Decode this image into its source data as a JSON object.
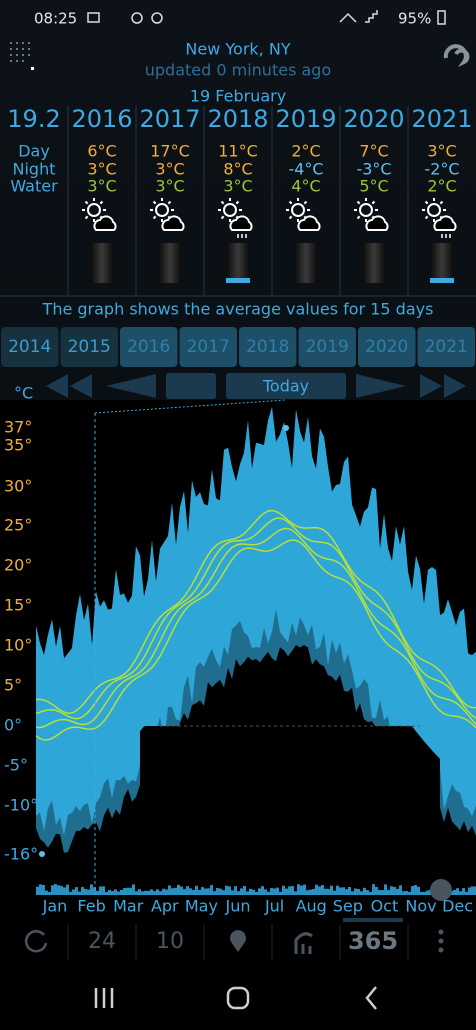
{
  "status": {
    "time": "08:25",
    "battery": "95%"
  },
  "header": {
    "location": "New York, NY",
    "updated": "updated 0 minutes ago",
    "date": "19 February"
  },
  "table": {
    "columns": [
      "19.2",
      "2016",
      "2017",
      "2018",
      "2019",
      "2020",
      "2021"
    ],
    "row_labels": [
      "Day",
      "Night",
      "Water"
    ],
    "rows": [
      [
        "6°C",
        "17°C",
        "11°C",
        "2°C",
        "7°C",
        "3°C"
      ],
      [
        "3°C",
        "3°C",
        "8°C",
        "-4°C",
        "-3°C",
        "-2°C"
      ],
      [
        "3°C",
        "3°C",
        "3°C",
        "4°C",
        "5°C",
        "2°C"
      ]
    ]
  },
  "note": "The graph shows the average values for 15 days",
  "year_tabs": [
    "2014",
    "2015",
    "2016",
    "2017",
    "2018",
    "2019",
    "2020",
    "2021"
  ],
  "today_button": "Today",
  "graph": {
    "unit": "°C",
    "y_labels": [
      "37°",
      "35°",
      "30°",
      "25°",
      "20°",
      "15°",
      "10°",
      "5°",
      "0°",
      "-5°",
      "-10°",
      "-16°"
    ],
    "months": [
      "Jan",
      "Feb",
      "Mar",
      "Apr",
      "May",
      "Jun",
      "Jul",
      "Aug",
      "Sep",
      "Oct",
      "Nov",
      "Dec"
    ]
  },
  "toolbar": {
    "hours": "24",
    "days": "10",
    "year": "365"
  }
}
